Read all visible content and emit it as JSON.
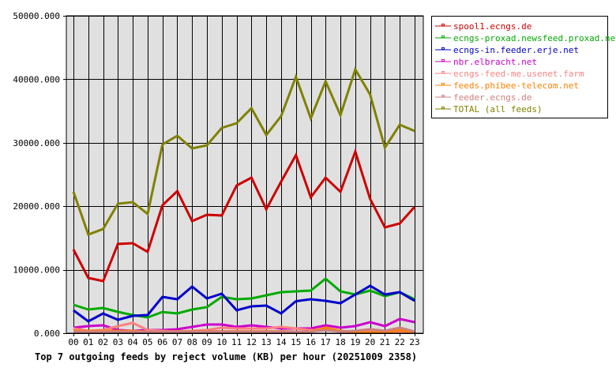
{
  "chart_data": {
    "type": "line",
    "title": "Top 7 outgoing feeds by reject volume (KB) per hour (20251009 2358)",
    "xlabel": "",
    "ylabel": "",
    "ylim": [
      0,
      50000
    ],
    "grid": true,
    "legend_position": "right",
    "y_ticks": [
      "0.000",
      "10000.000",
      "20000.000",
      "30000.000",
      "40000.000",
      "50000.000"
    ],
    "y_tick_values": [
      0,
      10000,
      20000,
      30000,
      40000,
      50000
    ],
    "categories": [
      "00",
      "01",
      "02",
      "03",
      "04",
      "05",
      "06",
      "07",
      "08",
      "09",
      "10",
      "11",
      "12",
      "13",
      "14",
      "15",
      "16",
      "17",
      "18",
      "19",
      "20",
      "21",
      "22",
      "23"
    ],
    "series": [
      {
        "name": "spool1.ecngs.de",
        "color": "#cc0000",
        "values": [
          13190,
          8710,
          8210,
          14060,
          14180,
          12810,
          20150,
          22390,
          17660,
          18660,
          18540,
          23260,
          24500,
          19530,
          23880,
          28050,
          21400,
          24500,
          22270,
          28610,
          21150,
          16670,
          17290,
          19900
        ]
      },
      {
        "name": "ecngs-proxad.newsfeed.proxad.net",
        "color": "#00aa00",
        "values": [
          4480,
          3730,
          3980,
          3360,
          2860,
          2490,
          3350,
          3110,
          3730,
          4100,
          5720,
          5350,
          5470,
          5970,
          6470,
          6590,
          6720,
          8580,
          6590,
          6100,
          6720,
          5850,
          6470,
          5350
        ]
      },
      {
        "name": "ecngs-in.feeder.erje.net",
        "color": "#0000cc",
        "values": [
          3610,
          1870,
          3110,
          2110,
          2740,
          2860,
          5720,
          5350,
          7340,
          5470,
          6220,
          3610,
          4230,
          4350,
          3110,
          5040,
          5350,
          5100,
          4730,
          6100,
          7460,
          6100,
          6470,
          5100
        ]
      },
      {
        "name": "nbr.elbracht.net",
        "color": "#cc00cc",
        "values": [
          870,
          1120,
          1240,
          500,
          370,
          500,
          500,
          620,
          1000,
          1370,
          1370,
          1000,
          1240,
          1000,
          750,
          750,
          750,
          1240,
          870,
          1120,
          1740,
          1120,
          2240,
          1740
        ]
      },
      {
        "name": "ecngs-feed-me.usenet.farm",
        "color": "#ff8080",
        "values": [
          750,
          370,
          500,
          1120,
          1620,
          500,
          370,
          250,
          370,
          500,
          870,
          750,
          750,
          750,
          1000,
          750,
          500,
          500,
          370,
          250,
          250,
          250,
          250,
          250
        ]
      },
      {
        "name": "feeds.phibee-telecom.net",
        "color": "#ff8000",
        "values": [
          370,
          370,
          370,
          370,
          370,
          250,
          250,
          300,
          300,
          300,
          300,
          300,
          300,
          300,
          300,
          250,
          250,
          870,
          370,
          120,
          120,
          120,
          500,
          120
        ]
      },
      {
        "name": "feeder.ecngs.de",
        "color": "#cc8080",
        "values": [
          250,
          250,
          250,
          250,
          250,
          250,
          250,
          250,
          250,
          250,
          250,
          250,
          250,
          250,
          250,
          250,
          250,
          500,
          250,
          370,
          620,
          370,
          870,
          250
        ]
      },
      {
        "name": "TOTAL (all feeds)",
        "color": "#808000",
        "values": [
          22270,
          15550,
          16420,
          20400,
          20650,
          18780,
          29730,
          31100,
          29110,
          29600,
          32340,
          33090,
          35450,
          31220,
          34210,
          40400,
          33840,
          39680,
          34340,
          41550,
          37570,
          29230,
          32840,
          31850
        ]
      }
    ]
  }
}
